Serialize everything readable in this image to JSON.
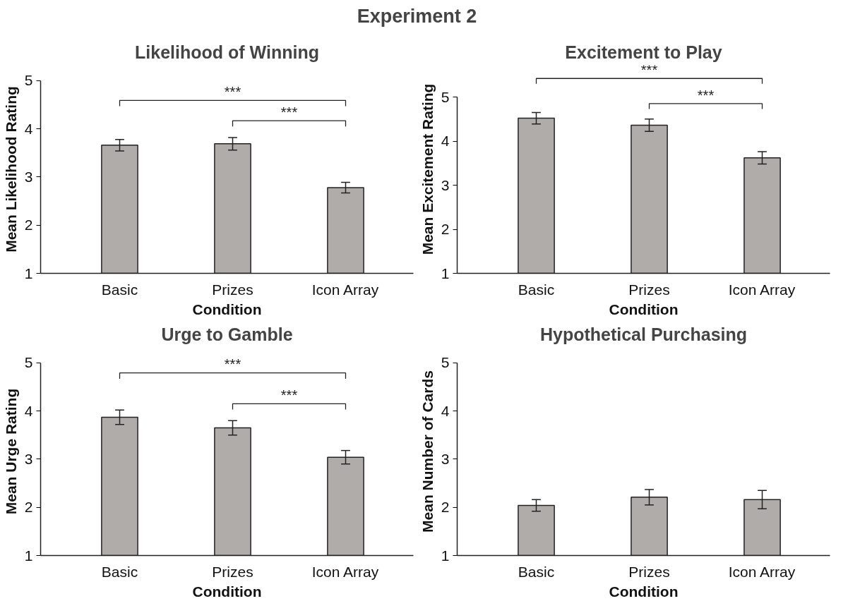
{
  "chart_data": [
    {
      "type": "other",
      "title": "Experiment 2"
    },
    {
      "type": "bar",
      "title": "Likelihood of Winning",
      "xlabel": "Condition",
      "ylabel": "Mean Likelihood Rating",
      "categories": [
        "Basic",
        "Prizes",
        "Icon Array"
      ],
      "values": [
        3.66,
        3.69,
        2.78
      ],
      "errors": [
        0.12,
        0.13,
        0.11
      ],
      "color": "#b0acaa",
      "ylim": [
        1,
        5
      ],
      "yticks": [
        1,
        2,
        3,
        4,
        5
      ],
      "annotations": [
        "***",
        "***"
      ]
    },
    {
      "type": "bar",
      "title": "Excitement to Play",
      "xlabel": "Condition",
      "ylabel": "Mean Excitement Rating",
      "categories": [
        "Basic",
        "Prizes",
        "Icon Array"
      ],
      "values": [
        4.52,
        4.36,
        3.62
      ],
      "errors": [
        0.13,
        0.14,
        0.14
      ],
      "color": "#b0acaa",
      "ylim": [
        1,
        5
      ],
      "yticks": [
        1,
        2,
        3,
        4,
        5
      ],
      "annotations": [
        "***",
        "***"
      ]
    },
    {
      "type": "bar",
      "title": "Urge to Gamble",
      "xlabel": "Condition",
      "ylabel": "Mean Urge Rating",
      "categories": [
        "Basic",
        "Prizes",
        "Icon Array"
      ],
      "values": [
        3.87,
        3.65,
        3.04
      ],
      "errors": [
        0.15,
        0.15,
        0.14
      ],
      "color": "#b0acaa",
      "ylim": [
        1,
        5
      ],
      "yticks": [
        1,
        2,
        3,
        4,
        5
      ],
      "annotations": [
        "***",
        "***"
      ]
    },
    {
      "type": "bar",
      "title": "Hypothetical Purchasing",
      "xlabel": "Condition",
      "ylabel": "Mean Number of Cards",
      "categories": [
        "Basic",
        "Prizes",
        "Icon Array"
      ],
      "values": [
        2.04,
        2.21,
        2.16
      ],
      "errors": [
        0.12,
        0.16,
        0.19
      ],
      "color": "#b0acaa",
      "ylim": [
        1,
        5
      ],
      "yticks": [
        1,
        2,
        3,
        4,
        5
      ]
    }
  ]
}
